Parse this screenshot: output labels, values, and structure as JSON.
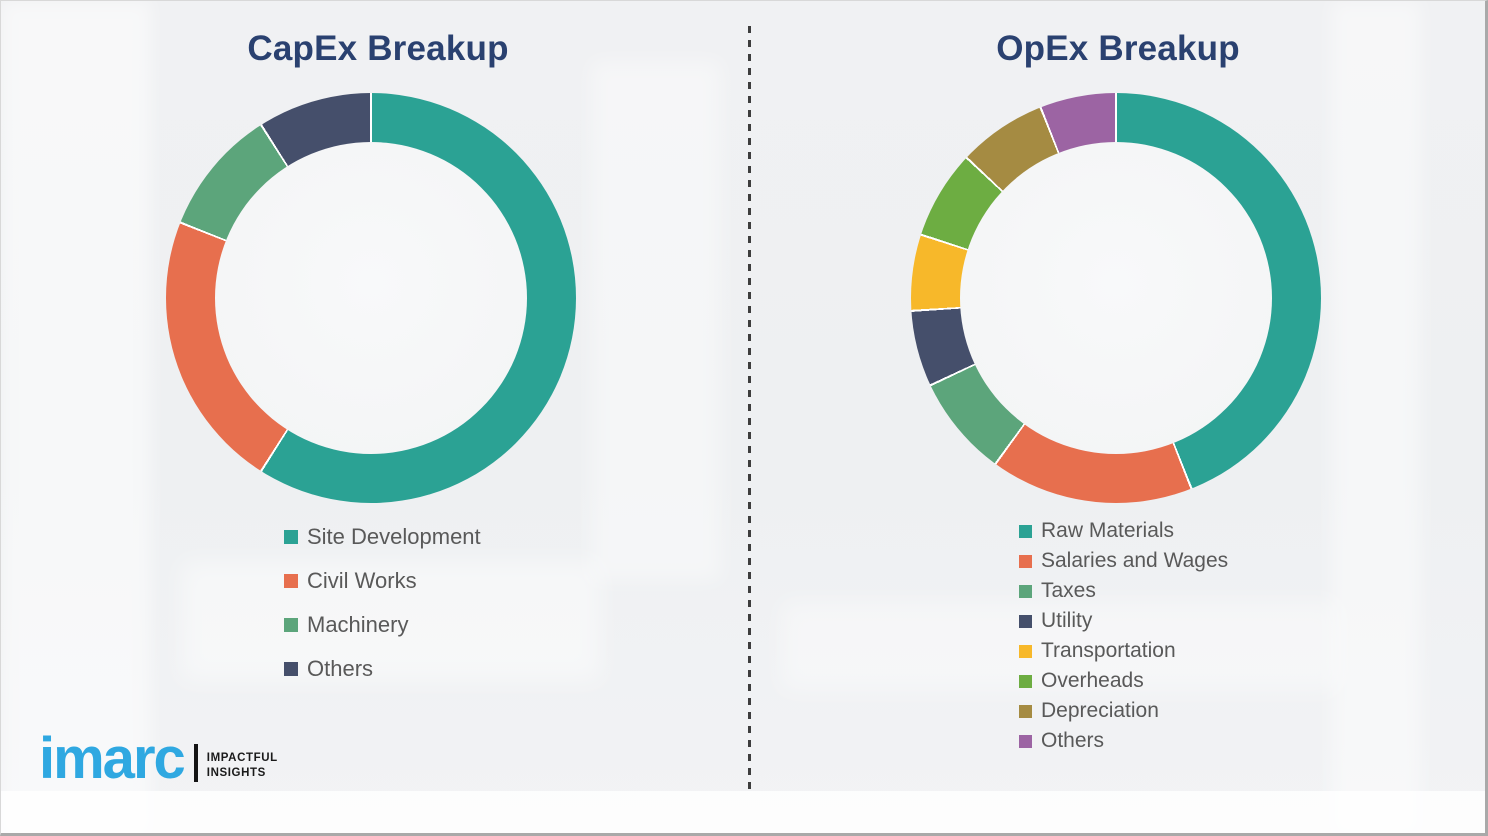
{
  "titles": {
    "capex": "CapEx Breakup",
    "opex": "OpEx Breakup"
  },
  "chart_data": [
    {
      "type": "pie",
      "subtype": "donut",
      "title": "CapEx Breakup",
      "categories": [
        "Site Development",
        "Civil Works",
        "Machinery",
        "Others"
      ],
      "values": [
        59,
        22,
        10,
        9
      ],
      "unit": "percent-of-ring (estimated from arc angles)",
      "colors": [
        "#2ba294",
        "#e76f4e",
        "#5ca57b",
        "#454f6b"
      ],
      "start_angle_deg": 0,
      "direction": "clockwise",
      "hole_ratio": 0.76,
      "legend_position": "below-left"
    },
    {
      "type": "pie",
      "subtype": "donut",
      "title": "OpEx Breakup",
      "categories": [
        "Raw Materials",
        "Salaries and Wages",
        "Taxes",
        "Utility",
        "Transportation",
        "Overheads",
        "Depreciation",
        "Others"
      ],
      "values": [
        44,
        16,
        8,
        6,
        6,
        7,
        7,
        6
      ],
      "unit": "percent-of-ring (estimated from arc angles)",
      "colors": [
        "#2ba294",
        "#e76f4e",
        "#5ca57b",
        "#454f6b",
        "#f7b82a",
        "#6dad42",
        "#a58b42",
        "#9c64a3"
      ],
      "start_angle_deg": 0,
      "direction": "clockwise",
      "hole_ratio": 0.76,
      "legend_position": "below-left"
    }
  ],
  "logo": {
    "wordmark": "imarc",
    "tagline_line1": "IMPACTFUL",
    "tagline_line2": "INSIGHTS",
    "wordmark_color": "#2fa8e1"
  },
  "style_colors": {
    "title_navy": "#2a4170",
    "legend_text": "#595959",
    "background": "#eff0f2",
    "divider": "#3d3d3d"
  }
}
